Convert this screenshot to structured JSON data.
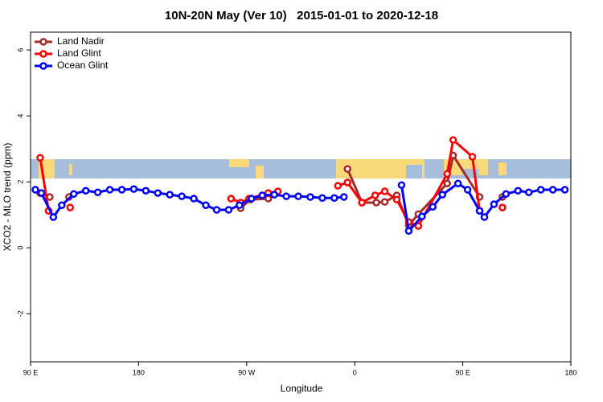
{
  "chart_data": {
    "type": "line",
    "title": "10N-20N May (Ver 10)   2015-01-01 to 2020-12-18",
    "x_label": "Longitude",
    "y_label": "XCO2 - MLO trend (ppm)",
    "xlim": [
      90,
      540
    ],
    "xticks": [
      {
        "value": 90,
        "label": "90 E"
      },
      180,
      {
        "value": 270,
        "label": "90 W"
      },
      {
        "value": 360,
        "label": "0"
      },
      {
        "value": 450,
        "label": "90 E"
      },
      {
        "value": 540,
        "label": "180"
      }
    ],
    "ylim": [
      -3.46,
      6.54
    ],
    "yticks": [
      -2,
      0,
      2,
      4,
      6
    ],
    "legend": "top-left",
    "series": [
      {
        "name": "Land Nadir",
        "color": "#a52a2a",
        "x": [
          98,
          106,
          114,
          122,
          190,
          265,
          273,
          288,
          320,
          354,
          366,
          378,
          385,
          395,
          405,
          413,
          437,
          442,
          464,
          474,
          483
        ],
        "values": [
          1.66,
          1.54,
          null,
          1.54,
          null,
          1.2,
          1.46,
          1.49,
          null,
          2.39,
          1.37,
          1.37,
          1.39,
          1.59,
          0.68,
          1.02,
          1.95,
          2.8,
          1.54,
          null,
          1.54
        ]
      },
      {
        "name": "Land Glint",
        "color": "#ff0000",
        "x": [
          98,
          105,
          114,
          123,
          190,
          257,
          265,
          272,
          288,
          296,
          320,
          346,
          354,
          366,
          377,
          385,
          395,
          405,
          413,
          437,
          442,
          458,
          464,
          474,
          483
        ],
        "values": [
          2.73,
          1.12,
          null,
          1.22,
          null,
          1.49,
          1.37,
          1.49,
          1.66,
          1.71,
          null,
          1.88,
          1.98,
          1.37,
          1.59,
          1.71,
          1.46,
          0.78,
          0.66,
          2.24,
          3.27,
          2.76,
          1.12,
          null,
          1.22
        ]
      },
      {
        "name": "Ocean Glint",
        "color": "#0000ff",
        "x": [
          94,
          99,
          109,
          116,
          126,
          136,
          146,
          156,
          166,
          176,
          186,
          196,
          206,
          216,
          226,
          236,
          245,
          255,
          264,
          274,
          283,
          293,
          303,
          313,
          323,
          333,
          343,
          351,
          375,
          399,
          405,
          416,
          425,
          433,
          446,
          454,
          464,
          468,
          476,
          486,
          496,
          505,
          515,
          525,
          535
        ],
        "values": [
          1.76,
          1.66,
          0.93,
          1.29,
          1.63,
          1.73,
          1.68,
          1.76,
          1.76,
          1.78,
          1.73,
          1.66,
          1.61,
          1.56,
          1.49,
          1.29,
          1.15,
          1.15,
          1.29,
          1.49,
          1.59,
          1.61,
          1.56,
          1.56,
          1.54,
          1.51,
          1.51,
          1.54,
          null,
          1.9,
          0.51,
          0.95,
          1.24,
          1.61,
          1.95,
          1.76,
          1.12,
          0.93,
          1.32,
          1.63,
          1.73,
          1.68,
          1.76,
          1.76,
          1.76
        ]
      }
    ]
  }
}
